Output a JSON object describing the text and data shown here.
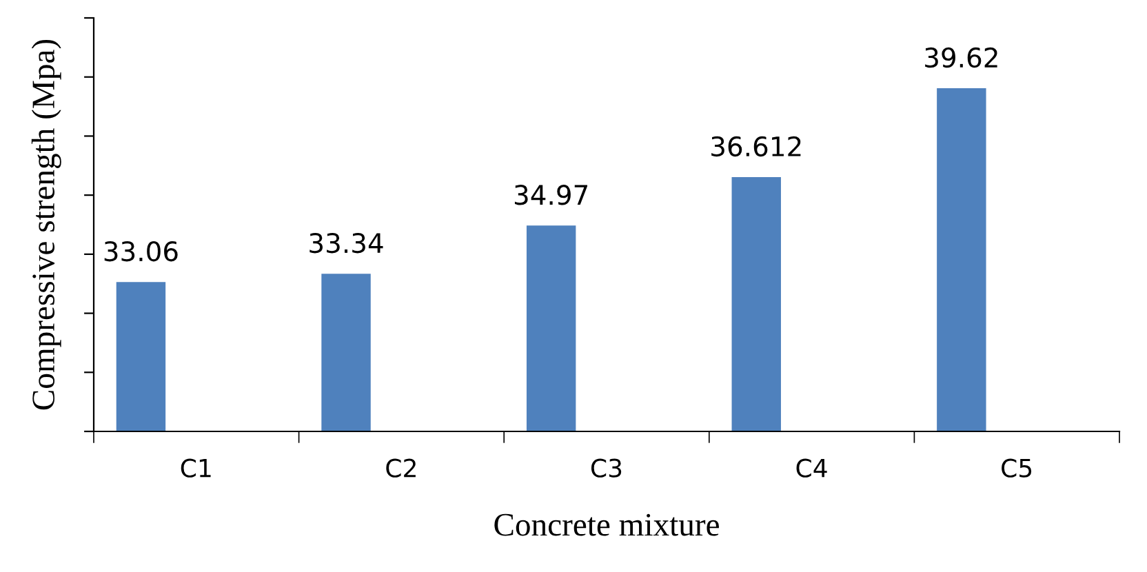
{
  "chart_data": {
    "type": "bar",
    "categories": [
      "C1",
      "C2",
      "C3",
      "C4",
      "C5"
    ],
    "values": [
      33.06,
      33.34,
      34.97,
      36.612,
      39.62
    ],
    "color": "#4f81bd",
    "data_labels": true,
    "xlabel": "Concrete mixture",
    "ylabel": "Compressive strength (Mpa)",
    "ylim": [
      28,
      42
    ],
    "yticks": [
      {
        "value": 28,
        "label": null
      },
      {
        "value": 30,
        "label": null
      },
      {
        "value": 32,
        "label": null
      },
      {
        "value": 34,
        "label": null
      },
      {
        "value": 36,
        "label": null
      },
      {
        "value": 38,
        "label": null
      },
      {
        "value": 40,
        "label": null
      },
      {
        "value": 42,
        "label": null
      }
    ],
    "tick_labels": "x",
    "grid": false,
    "legend": false
  }
}
